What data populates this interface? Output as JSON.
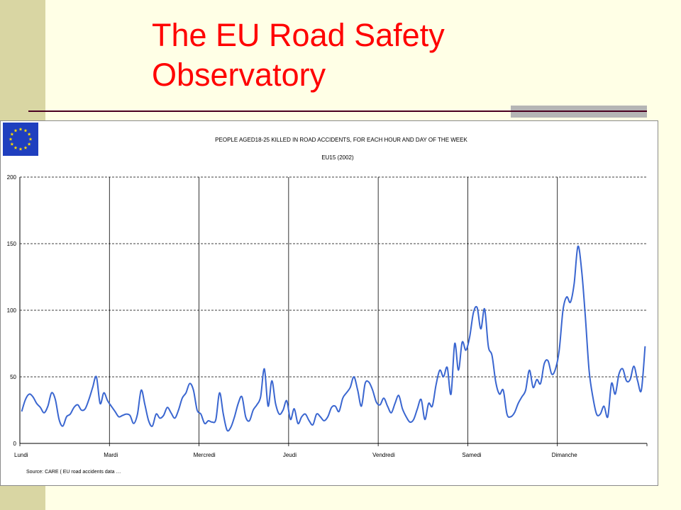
{
  "slide": {
    "title": "The EU Road Safety Observatory"
  },
  "colors": {
    "title": "#ff0000",
    "line": "#3a66d0",
    "background": "#ffffe6",
    "band": "#d9d6a3"
  },
  "flag": {
    "icon": "eu-flag-icon"
  },
  "chart_data": {
    "type": "line",
    "title": "PEOPLE AGED18-25 KILLED IN ROAD ACCIDENTS, FOR EACH HOUR AND DAY OF THE WEEK",
    "subtitle": "EU15 (2002)",
    "source": "Source: CARE ( EU road accidents data …",
    "xlabel": "",
    "ylabel": "",
    "ylim": [
      0,
      200
    ],
    "yticks": [
      0,
      50,
      100,
      150,
      200
    ],
    "grid": {
      "horizontal": "dashed",
      "vertical": "solid at day boundaries"
    },
    "days": [
      "Lundi",
      "Mardi",
      "Mercredi",
      "Jeudi",
      "Vendredi",
      "Samedi",
      "Dimanche"
    ],
    "hours_per_day": 24,
    "series": [
      {
        "values": [
          24,
          33,
          37,
          35,
          30,
          27,
          23,
          28,
          38,
          33,
          18,
          13,
          20,
          22,
          27,
          29,
          25,
          26,
          33,
          42,
          50,
          30,
          38,
          32,
          28,
          24,
          20,
          21,
          22,
          21,
          15,
          22,
          40,
          29,
          17,
          13,
          22,
          19,
          21,
          27,
          23,
          19,
          25,
          34,
          38,
          45,
          40,
          25,
          22,
          15,
          17,
          16,
          18,
          38,
          22,
          10,
          12,
          20,
          30,
          35,
          20,
          17,
          25,
          29,
          35,
          56,
          28,
          47,
          30,
          22,
          25,
          32,
          18,
          26,
          15,
          20,
          22,
          17,
          14,
          22,
          20,
          17,
          20,
          27,
          28,
          24,
          34,
          38,
          42,
          50,
          40,
          28,
          45,
          46,
          40,
          31,
          29,
          34,
          28,
          23,
          30,
          36,
          26,
          20,
          16,
          18,
          26,
          33,
          18,
          30,
          28,
          44,
          55,
          50,
          57,
          37,
          75,
          55,
          76,
          70,
          80,
          98,
          102,
          86,
          101,
          73,
          66,
          46,
          37,
          40,
          22,
          20,
          23,
          30,
          35,
          40,
          55,
          42,
          48,
          45,
          60,
          62,
          52,
          56,
          70,
          100,
          110,
          106,
          120,
          148,
          130,
          95,
          55,
          35,
          22,
          22,
          28,
          20,
          45,
          37,
          52,
          56,
          47,
          48,
          58,
          47,
          40,
          73
        ]
      }
    ]
  }
}
